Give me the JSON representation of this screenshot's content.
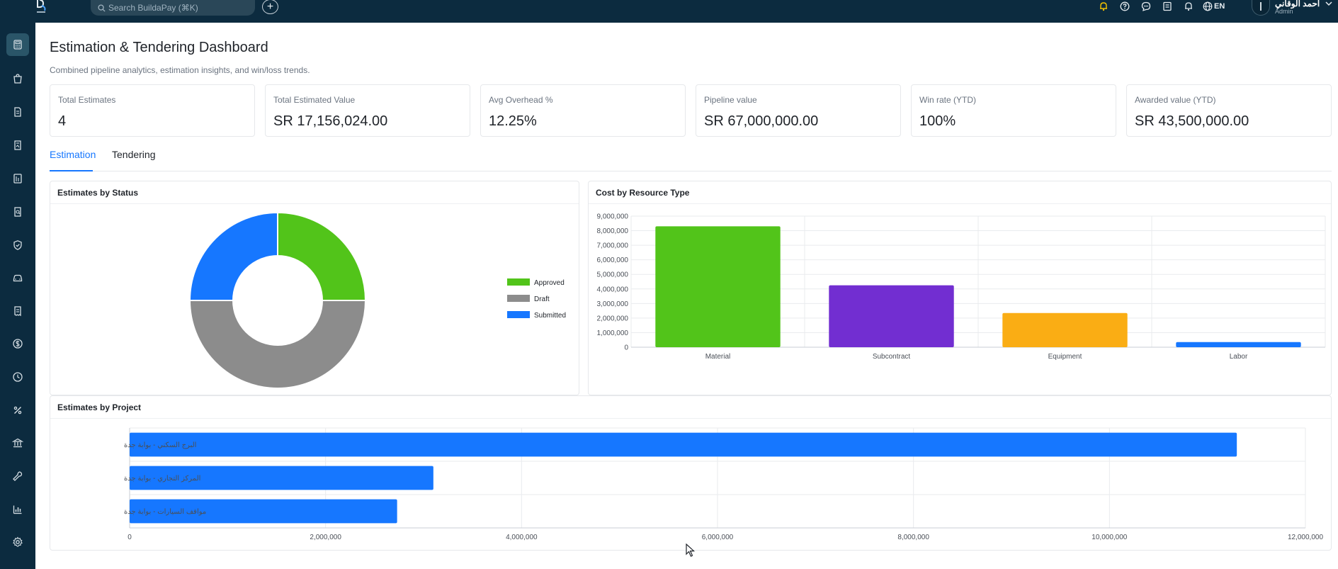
{
  "search": {
    "placeholder": "Search BuildaPay (⌘K)"
  },
  "header": {
    "language": "EN",
    "user_name": "أحمد الوقاني",
    "user_role": "Admin"
  },
  "page": {
    "title": "Estimation & Tendering Dashboard",
    "subtitle": "Combined pipeline analytics, estimation insights, and win/loss trends."
  },
  "kpis": [
    {
      "label": "Total Estimates",
      "value": "4"
    },
    {
      "label": "Total Estimated Value",
      "value": "SR 17,156,024.00"
    },
    {
      "label": "Avg Overhead %",
      "value": "12.25%"
    },
    {
      "label": "Pipeline value",
      "value": "SR 67,000,000.00"
    },
    {
      "label": "Win rate (YTD)",
      "value": "100%"
    },
    {
      "label": "Awarded value (YTD)",
      "value": "SR 43,500,000.00"
    }
  ],
  "tabs": [
    {
      "label": "Estimation",
      "active": true
    },
    {
      "label": "Tendering",
      "active": false
    }
  ],
  "sidebar_icons": [
    "calculator-icon",
    "shopping-bag-icon",
    "document-icon",
    "contract-icon",
    "ledger-icon",
    "file-search-icon",
    "shield-icon",
    "car-icon",
    "receipt-icon",
    "dollar-icon",
    "clock-icon",
    "percent-icon",
    "bank-icon",
    "wrench-icon",
    "bar-chart-icon",
    "settings-icon"
  ],
  "colors": {
    "topbar": "#0c2b3f",
    "accent": "#1677ff",
    "approved": "#52c41a",
    "draft": "#8c8c8c",
    "submitted": "#1677ff",
    "subcontract": "#722ed1",
    "equipment": "#faad14"
  },
  "chart_data": [
    {
      "type": "pie",
      "title": "Estimates by Status",
      "legend_position": "right",
      "slices": [
        {
          "name": "Approved",
          "value": 1,
          "color": "#52c41a"
        },
        {
          "name": "Draft",
          "value": 2,
          "color": "#8c8c8c"
        },
        {
          "name": "Submitted",
          "value": 1,
          "color": "#1677ff"
        }
      ]
    },
    {
      "type": "bar",
      "title": "Cost by Resource Type",
      "categories": [
        "Material",
        "Subcontract",
        "Equipment",
        "Labor"
      ],
      "values": [
        8300000,
        4250000,
        2350000,
        350000
      ],
      "colors": [
        "#52c41a",
        "#722ed1",
        "#faad14",
        "#1677ff"
      ],
      "ylim": [
        0,
        9000000
      ],
      "yticks": [
        "0",
        "1,000,000",
        "2,000,000",
        "3,000,000",
        "4,000,000",
        "5,000,000",
        "6,000,000",
        "7,000,000",
        "8,000,000",
        "9,000,000"
      ],
      "grid": true
    },
    {
      "type": "bar",
      "orientation": "horizontal",
      "title": "Estimates by Project",
      "categories": [
        "البرج السكني - بوابة جدة",
        "المركز التجاري - بوابة جدة",
        "مواقف السيارات - بوابة جدة"
      ],
      "values": [
        11300000,
        3100000,
        2730000
      ],
      "color": "#1677ff",
      "xlim": [
        0,
        12000000
      ],
      "xticks": [
        "0",
        "2,000,000",
        "4,000,000",
        "6,000,000",
        "8,000,000",
        "10,000,000",
        "12,000,000"
      ],
      "grid": true
    }
  ]
}
